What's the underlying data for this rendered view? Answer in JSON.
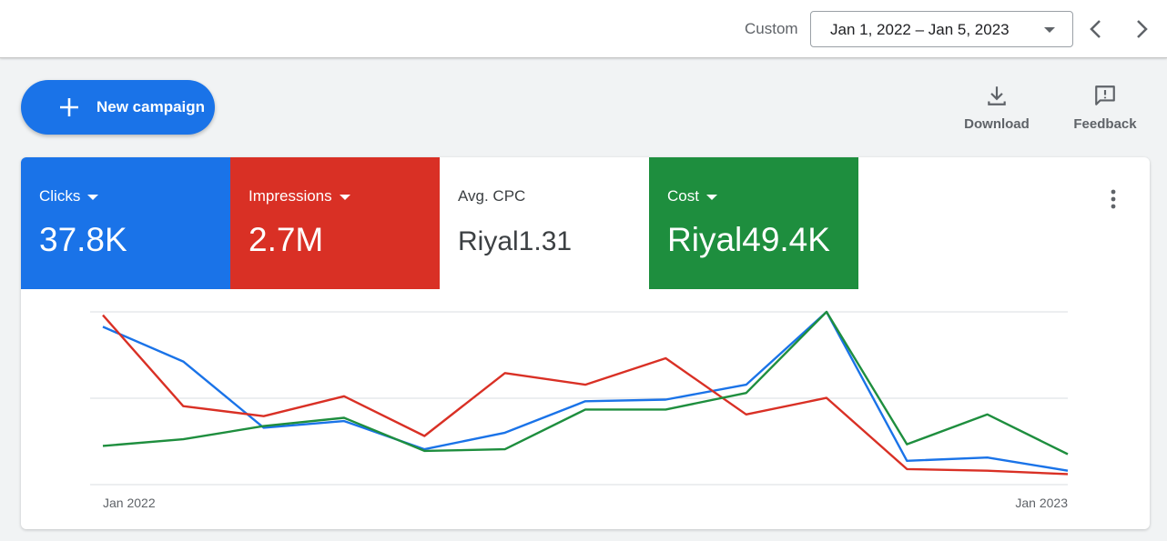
{
  "header": {
    "range_type": "Custom",
    "date_range": "Jan 1, 2022 – Jan 5, 2023",
    "prev_icon": "chevron-left-icon",
    "next_icon": "chevron-right-icon"
  },
  "actions": {
    "new_campaign_label": "New campaign",
    "download_label": "Download",
    "feedback_label": "Feedback"
  },
  "metrics": [
    {
      "name": "Clicks",
      "value": "37.8K",
      "color": "#1a73e8",
      "dropdown": true
    },
    {
      "name": "Impressions",
      "value": "2.7M",
      "color": "#d93025",
      "dropdown": true
    },
    {
      "name": "Avg. CPC",
      "value": "Riyal1.31",
      "color": "#ffffff",
      "dropdown": false
    },
    {
      "name": "Cost",
      "value": "Riyal49.4K",
      "color": "#1e8e3e",
      "dropdown": true
    }
  ],
  "chart_data": {
    "type": "line",
    "x_ticks": [
      "Jan 2022",
      "Jan 2023"
    ],
    "grid": true,
    "series": [
      {
        "name": "Clicks",
        "color": "#1a73e8",
        "values": [
          0.91,
          0.7,
          0.3,
          0.34,
          0.17,
          0.27,
          0.46,
          0.47,
          0.56,
          1.0,
          0.1,
          0.12,
          0.04
        ]
      },
      {
        "name": "Impressions",
        "color": "#d93025",
        "values": [
          0.98,
          0.43,
          0.37,
          0.49,
          0.25,
          0.63,
          0.56,
          0.72,
          0.38,
          0.48,
          0.05,
          0.04,
          0.02
        ]
      },
      {
        "name": "Cost",
        "color": "#1e8e3e",
        "values": [
          0.19,
          0.23,
          0.31,
          0.36,
          0.16,
          0.17,
          0.41,
          0.41,
          0.51,
          1.0,
          0.2,
          0.38,
          0.14
        ]
      }
    ]
  }
}
